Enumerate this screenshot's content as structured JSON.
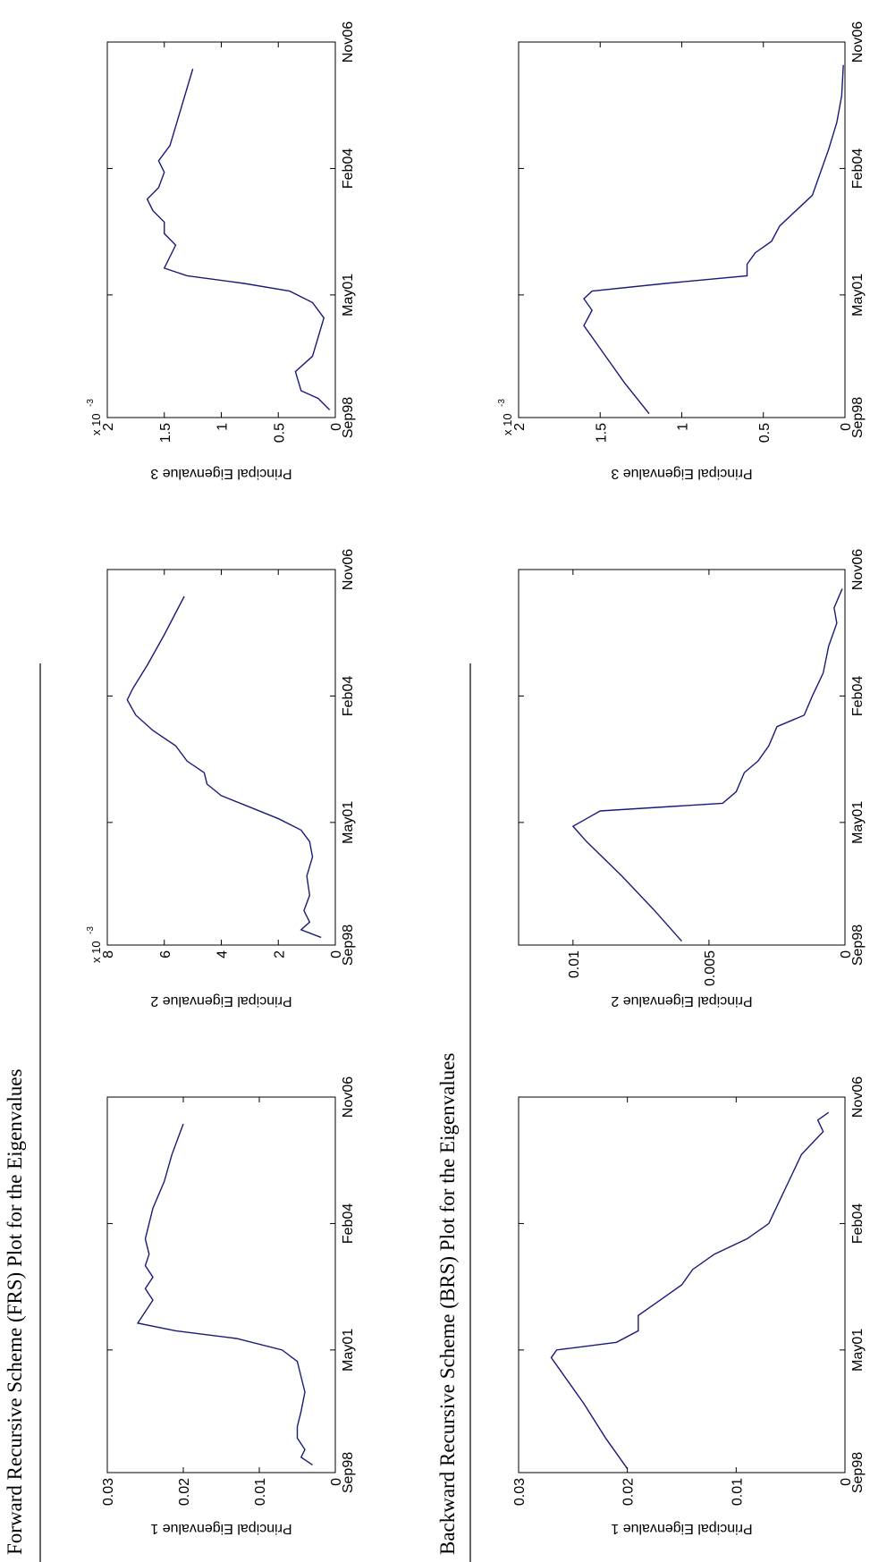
{
  "section_titles": [
    "Forward Recursive Scheme (FRS) Plot for the Eigenvalues",
    "Backward Recursive Scheme (BRS) Plot for the Eigenvalues"
  ],
  "chart_data": [
    {
      "type": "line",
      "y_label": "Principal Eigenvalue 1",
      "x": [
        "1998-11",
        "1999-01",
        "1999-03",
        "1999-06",
        "1999-09",
        "2000-01",
        "2000-06",
        "2000-10",
        "2001-02",
        "2001-05",
        "2001-08",
        "2001-10",
        "2001-12",
        "2002-03",
        "2002-06",
        "2002-09",
        "2002-12",
        "2003-03",
        "2003-06",
        "2003-10",
        "2004-02",
        "2004-06",
        "2005-01",
        "2005-08",
        "2006-04"
      ],
      "series": [
        {
          "color": "#1a1a7a",
          "values": [
            0.003,
            0.0045,
            0.004,
            0.005,
            0.005,
            0.0045,
            0.004,
            0.0045,
            0.005,
            0.007,
            0.013,
            0.021,
            0.026,
            0.025,
            0.024,
            0.025,
            0.024,
            0.025,
            0.0245,
            0.025,
            0.0245,
            0.024,
            0.0225,
            0.0215,
            0.02
          ]
        }
      ],
      "xlim": [
        "1998-09",
        "2006-11"
      ],
      "xticks": [
        {
          "value": "1998-09",
          "label": "Sep98"
        },
        {
          "value": "2001-05",
          "label": "May01"
        },
        {
          "value": "2004-02",
          "label": "Feb04"
        },
        {
          "value": "2006-11",
          "label": "Nov06"
        }
      ],
      "ylim": [
        0,
        0.03
      ],
      "yticks": [
        0,
        0.01,
        0.02,
        0.03
      ]
    },
    {
      "type": "line",
      "y_label": "Principal Eigenvalue 2",
      "y_multiplier": "x 10",
      "y_multiplier_exponent": "-3",
      "x": [
        "1998-11",
        "1999-01",
        "1999-03",
        "1999-06",
        "1999-10",
        "2000-03",
        "2000-08",
        "2000-12",
        "2001-03",
        "2001-06",
        "2001-09",
        "2001-12",
        "2002-03",
        "2002-06",
        "2002-09",
        "2003-01",
        "2003-05",
        "2003-09",
        "2004-01",
        "2004-04",
        "2004-10",
        "2005-06",
        "2006-04"
      ],
      "series": [
        {
          "color": "#1a1a7a",
          "values": [
            0.5,
            1.2,
            0.9,
            1.1,
            0.9,
            1.0,
            0.8,
            0.9,
            1.2,
            2.0,
            3.0,
            4.0,
            4.5,
            4.6,
            5.2,
            5.6,
            6.4,
            7.0,
            7.3,
            7.1,
            6.6,
            6.0,
            5.3
          ]
        }
      ],
      "xlim": [
        "1998-09",
        "2006-11"
      ],
      "xticks": [
        {
          "value": "1998-09",
          "label": "Sep98"
        },
        {
          "value": "2001-05",
          "label": "May01"
        },
        {
          "value": "2004-02",
          "label": "Feb04"
        },
        {
          "value": "2006-11",
          "label": "Nov06"
        }
      ],
      "ylim": [
        0,
        8
      ],
      "yticks": [
        0,
        2,
        4,
        6,
        8
      ]
    },
    {
      "type": "line",
      "y_label": "Principal Eigenvalue 3",
      "y_multiplier": "x 10",
      "y_multiplier_exponent": "-3",
      "x": [
        "1998-11",
        "1999-02",
        "1999-04",
        "1999-09",
        "2000-01",
        "2000-06",
        "2000-11",
        "2001-03",
        "2001-06",
        "2001-08",
        "2001-10",
        "2001-12",
        "2002-03",
        "2002-06",
        "2002-09",
        "2002-12",
        "2003-03",
        "2003-06",
        "2003-09",
        "2004-01",
        "2004-04",
        "2004-08",
        "2005-03",
        "2006-04"
      ],
      "series": [
        {
          "color": "#1a1a7a",
          "values": [
            0.05,
            0.15,
            0.3,
            0.35,
            0.2,
            0.15,
            0.1,
            0.2,
            0.4,
            0.8,
            1.3,
            1.5,
            1.45,
            1.4,
            1.5,
            1.5,
            1.6,
            1.65,
            1.55,
            1.5,
            1.55,
            1.45,
            1.38,
            1.25
          ]
        }
      ],
      "xlim": [
        "1998-09",
        "2006-11"
      ],
      "xticks": [
        {
          "value": "1998-09",
          "label": "Sep98"
        },
        {
          "value": "2001-05",
          "label": "May01"
        },
        {
          "value": "2004-02",
          "label": "Feb04"
        },
        {
          "value": "2006-11",
          "label": "Nov06"
        }
      ],
      "ylim": [
        0,
        2
      ],
      "yticks": [
        0,
        0.5,
        1,
        1.5,
        2
      ]
    },
    {
      "type": "line",
      "y_label": "Principal Eigenvalue 1",
      "x": [
        "1998-10",
        "1999-06",
        "2000-03",
        "2000-11",
        "2001-03",
        "2001-05",
        "2001-07",
        "2001-10",
        "2002-02",
        "2002-06",
        "2002-10",
        "2003-02",
        "2003-06",
        "2003-10",
        "2004-02",
        "2004-08",
        "2005-02",
        "2005-08",
        "2006-02",
        "2006-05",
        "2006-07"
      ],
      "series": [
        {
          "color": "#1a1a7a",
          "values": [
            0.02,
            0.022,
            0.024,
            0.026,
            0.027,
            0.0265,
            0.021,
            0.019,
            0.019,
            0.017,
            0.015,
            0.014,
            0.012,
            0.009,
            0.007,
            0.006,
            0.005,
            0.004,
            0.002,
            0.0025,
            0.0015
          ]
        }
      ],
      "xlim": [
        "1998-09",
        "2006-11"
      ],
      "xticks": [
        {
          "value": "1998-09",
          "label": "Sep98"
        },
        {
          "value": "2001-05",
          "label": "May01"
        },
        {
          "value": "2004-02",
          "label": "Feb04"
        },
        {
          "value": "2006-11",
          "label": "Nov06"
        }
      ],
      "ylim": [
        0,
        0.03
      ],
      "yticks": [
        0,
        0.01,
        0.02,
        0.03
      ]
    },
    {
      "type": "line",
      "y_label": "Principal Eigenvalue 2",
      "x": [
        "1998-10",
        "1999-06",
        "2000-03",
        "2000-12",
        "2001-04",
        "2001-06",
        "2001-08",
        "2001-10",
        "2002-01",
        "2002-06",
        "2002-09",
        "2003-01",
        "2003-06",
        "2003-09",
        "2004-02",
        "2004-08",
        "2005-03",
        "2005-09",
        "2006-01",
        "2006-06"
      ],
      "series": [
        {
          "color": "#1a1a7a",
          "values": [
            0.006,
            0.007,
            0.0082,
            0.0095,
            0.01,
            0.0095,
            0.009,
            0.0045,
            0.004,
            0.0037,
            0.0032,
            0.0028,
            0.0025,
            0.0015,
            0.0012,
            0.0008,
            0.0006,
            0.0003,
            0.0004,
            0.0001
          ]
        }
      ],
      "xlim": [
        "1998-09",
        "2006-11"
      ],
      "xticks": [
        {
          "value": "1998-09",
          "label": "Sep98"
        },
        {
          "value": "2001-05",
          "label": "May01"
        },
        {
          "value": "2004-02",
          "label": "Feb04"
        },
        {
          "value": "2006-11",
          "label": "Nov06"
        }
      ],
      "ylim": [
        0,
        0.012
      ],
      "yticks": [
        0,
        0.005,
        0.01
      ]
    },
    {
      "type": "line",
      "y_label": "Principal Eigenvalue 3",
      "y_multiplier": "x 10",
      "y_multiplier_exponent": "-3",
      "x": [
        "1998-10",
        "1999-06",
        "2000-03",
        "2000-09",
        "2001-01",
        "2001-04",
        "2001-06",
        "2001-08",
        "2001-10",
        "2002-01",
        "2002-04",
        "2002-07",
        "2002-11",
        "2003-03",
        "2003-07",
        "2004-01",
        "2004-07",
        "2005-02",
        "2005-09",
        "2006-05"
      ],
      "series": [
        {
          "color": "#1a1a7a",
          "values": [
            1.2,
            1.35,
            1.5,
            1.6,
            1.55,
            1.6,
            1.55,
            1.1,
            0.6,
            0.6,
            0.55,
            0.45,
            0.4,
            0.3,
            0.2,
            0.15,
            0.1,
            0.05,
            0.02,
            0.01
          ]
        }
      ],
      "xlim": [
        "1998-09",
        "2006-11"
      ],
      "xticks": [
        {
          "value": "1998-09",
          "label": "Sep98"
        },
        {
          "value": "2001-05",
          "label": "May01"
        },
        {
          "value": "2004-02",
          "label": "Feb04"
        },
        {
          "value": "2006-11",
          "label": "Nov06"
        }
      ],
      "ylim": [
        0,
        2
      ],
      "yticks": [
        0,
        0.5,
        1,
        1.5,
        2
      ]
    }
  ]
}
